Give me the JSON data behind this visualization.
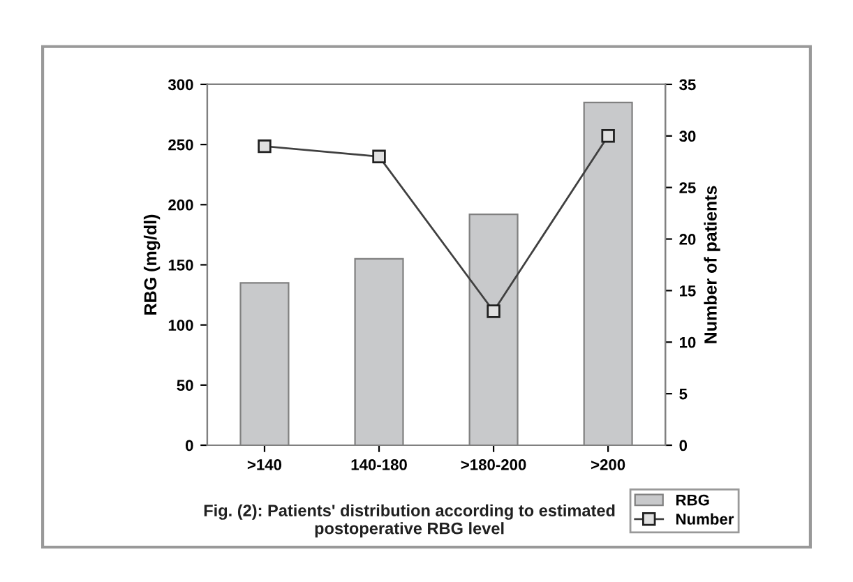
{
  "chart_data": {
    "type": "bar",
    "categories": [
      ">140",
      "140-180",
      ">180-200",
      ">200"
    ],
    "ylabel": "RBG (mg/dl)",
    "y2label": "Number of patients",
    "series": [
      {
        "name": "RBG",
        "color": "#c8c9cb",
        "values": [
          135,
          155,
          192,
          285
        ]
      },
      {
        "name": "Number",
        "type": "line",
        "axis": "y2",
        "color": "#404040",
        "marker": "square",
        "values": [
          29,
          28,
          13,
          30
        ]
      }
    ],
    "ylim": [
      0,
      300
    ],
    "yticks": [
      0,
      50,
      100,
      150,
      200,
      250,
      300
    ],
    "y2lim": [
      0,
      35
    ],
    "y2ticks": [
      0,
      5,
      10,
      15,
      20,
      25,
      30,
      35
    ],
    "grid": false,
    "legend": "bottom right",
    "annotations": [
      "Fig. (2): Patients' distribution according to estimated\npostoperative RBG level"
    ]
  }
}
